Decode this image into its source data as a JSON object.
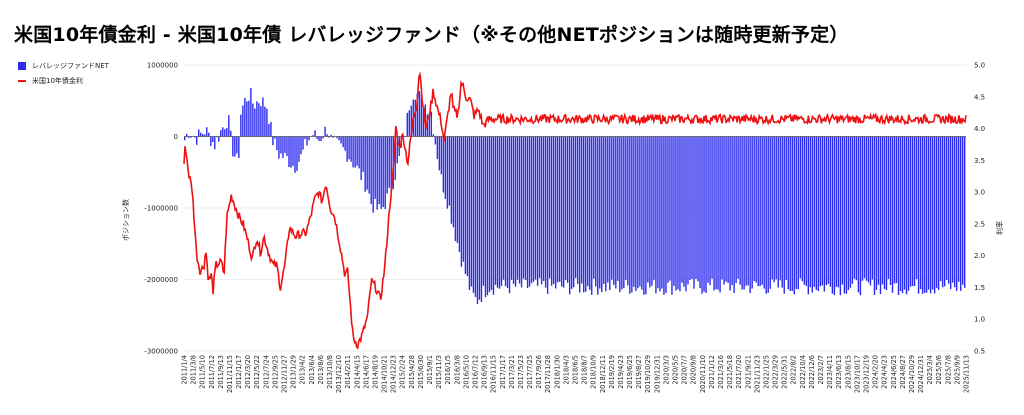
{
  "title": "米国10年債金利 - 米国10年債 レバレッジファンド（※その他NETポジションは随時更新予定）",
  "legend": [
    {
      "label": "レバレッジファンドNET",
      "color": "#2a2aee",
      "kind": "bar"
    },
    {
      "label": "米国10年債金利",
      "color": "#ee1111",
      "kind": "line"
    }
  ],
  "chart_data": {
    "type": "bar",
    "ylabel": "ポジション数",
    "y2label": "利率",
    "ylim": [
      -3000000,
      1000000
    ],
    "y_ticks": [
      "1000000",
      "0",
      "-1000000",
      "-2000000",
      "-3000000"
    ],
    "y2lim": [
      0.5,
      5.0
    ],
    "y2_ticks": [
      "5.0",
      "4.5",
      "4.0",
      "3.5",
      "3.0",
      "2.5",
      "2.0",
      "1.5",
      "1.0",
      "0.5"
    ],
    "x_labels": [
      "2011/1/4",
      "2011/3/8",
      "2011/5/10",
      "2011/7/12",
      "2011/9/13",
      "2011/11/15",
      "2012/1/17",
      "2012/3/20",
      "2012/5/22",
      "2012/7/24",
      "2012/9/25",
      "2012/11/27",
      "2013/1/29",
      "2013/4/2",
      "2013/6/4",
      "2013/8/6",
      "2013/10/8",
      "2013/12/10",
      "2014/2/11",
      "2014/4/15",
      "2014/6/17",
      "2014/8/19",
      "2014/10/21",
      "2014/12/23",
      "2015/2/24",
      "2015/4/28",
      "2015/6/30",
      "2015/9/1",
      "2015/11/3",
      "2016/1/5",
      "2016/3/8",
      "2016/5/10",
      "2016/7/12",
      "2016/9/13",
      "2016/11/15",
      "2017/1/17",
      "2017/3/21",
      "2017/5/23",
      "2017/7/25",
      "2017/9/26",
      "2017/11/28",
      "2018/1/30",
      "2018/4/3",
      "2018/6/5",
      "2018/8/7",
      "2018/10/9",
      "2018/12/11",
      "2019/2/19",
      "2019/4/23",
      "2019/6/25",
      "2019/8/27",
      "2019/10/29",
      "2019/12/31",
      "2020/3/3",
      "2020/5/5",
      "2020/7/7",
      "2020/9/8",
      "2020/11/10",
      "2021/1/12",
      "2021/3/16",
      "2021/5/18",
      "2021/7/20",
      "2021/9/21",
      "2021/11/23",
      "2022/1/25",
      "2022/3/29",
      "2022/5/31",
      "2022/8/2",
      "2022/10/4",
      "2022/12/6",
      "2023/2/7",
      "2023/4/11",
      "2023/6/13",
      "2023/8/15",
      "2023/10/17",
      "2023/12/19",
      "2024/2/20",
      "2024/4/23",
      "2024/6/25",
      "2024/8/27",
      "2024/10/29",
      "2024/12/31",
      "2025/3/4",
      "2025/5/6",
      "2025/7/8",
      "2025/9/9",
      "2025/11/13"
    ],
    "series": [
      {
        "name": "レバレッジファンドNET",
        "kind": "bar",
        "axis": "left",
        "anchors": [
          [
            0,
            -50000
          ],
          [
            0.4,
            80000
          ],
          [
            1.2,
            -30000
          ],
          [
            2.3,
            90000
          ],
          [
            3.3,
            -120000
          ],
          [
            4.1,
            110000
          ],
          [
            4.8,
            260000
          ],
          [
            5.2,
            -150000
          ],
          [
            5.9,
            -400000
          ],
          [
            6.2,
            350000
          ],
          [
            6.7,
            520000
          ],
          [
            7.2,
            600000
          ],
          [
            7.6,
            440000
          ],
          [
            8.3,
            520000
          ],
          [
            9.1,
            420000
          ],
          [
            9.7,
            -50000
          ],
          [
            10.4,
            -250000
          ],
          [
            11.2,
            -300000
          ],
          [
            12.1,
            -420000
          ],
          [
            12.8,
            -300000
          ],
          [
            13.4,
            -100000
          ],
          [
            14.1,
            40000
          ],
          [
            14.8,
            -50000
          ],
          [
            15.7,
            120000
          ],
          [
            16.3,
            -100000
          ],
          [
            17.2,
            -150000
          ],
          [
            18.0,
            -250000
          ],
          [
            19.0,
            -450000
          ],
          [
            20.1,
            -700000
          ],
          [
            20.6,
            -950000
          ],
          [
            21.6,
            -1050000
          ],
          [
            22.6,
            -800000
          ],
          [
            23.6,
            -350000
          ],
          [
            24.3,
            40000
          ],
          [
            24.8,
            480000
          ],
          [
            25.3,
            650000
          ],
          [
            26.2,
            500000
          ],
          [
            27.2,
            350000
          ],
          [
            27.6,
            -50000
          ],
          [
            28.3,
            -600000
          ],
          [
            29.1,
            -950000
          ],
          [
            29.9,
            -1400000
          ],
          [
            30.7,
            -1800000
          ],
          [
            31.6,
            -2200000
          ],
          [
            32.2,
            -2300000
          ],
          [
            32.8,
            -2200000
          ],
          [
            33.5,
            -2100000
          ]
        ],
        "noise": 120000
      },
      {
        "name": "米国10年債金利",
        "kind": "line",
        "axis": "right",
        "anchors": [
          [
            0,
            3.45
          ],
          [
            0.15,
            3.75
          ],
          [
            0.5,
            3.3
          ],
          [
            0.9,
            3.05
          ],
          [
            1.4,
            2.0
          ],
          [
            1.8,
            1.75
          ],
          [
            2.2,
            1.85
          ],
          [
            2.4,
            2.1
          ],
          [
            2.7,
            1.6
          ],
          [
            3.0,
            1.7
          ],
          [
            3.2,
            1.45
          ],
          [
            3.5,
            1.85
          ],
          [
            4.1,
            1.9
          ],
          [
            4.4,
            1.7
          ],
          [
            4.7,
            2.6
          ],
          [
            5.2,
            2.95
          ],
          [
            5.7,
            2.75
          ],
          [
            6.1,
            2.6
          ],
          [
            6.5,
            2.5
          ],
          [
            7.0,
            2.25
          ],
          [
            7.5,
            1.95
          ],
          [
            8.0,
            2.3
          ],
          [
            8.4,
            2.05
          ],
          [
            8.8,
            2.3
          ],
          [
            9.3,
            2.05
          ],
          [
            9.8,
            1.85
          ],
          [
            10.2,
            1.85
          ],
          [
            10.6,
            1.5
          ],
          [
            11.1,
            1.85
          ],
          [
            11.6,
            2.45
          ],
          [
            12.3,
            2.3
          ],
          [
            12.9,
            2.35
          ],
          [
            13.4,
            2.35
          ],
          [
            13.9,
            2.6
          ],
          [
            14.4,
            2.9
          ],
          [
            14.8,
            3.0
          ],
          [
            15.2,
            2.85
          ],
          [
            15.6,
            3.15
          ],
          [
            16.1,
            2.75
          ],
          [
            16.6,
            2.6
          ],
          [
            17.3,
            2.05
          ],
          [
            17.7,
            1.7
          ],
          [
            18.0,
            1.75
          ],
          [
            18.6,
            0.7
          ],
          [
            19.1,
            0.6
          ],
          [
            19.6,
            0.75
          ],
          [
            20.2,
            1.05
          ],
          [
            20.6,
            1.6
          ],
          [
            21.1,
            1.5
          ],
          [
            21.6,
            1.3
          ],
          [
            22.1,
            1.85
          ],
          [
            22.6,
            2.75
          ],
          [
            23.0,
            3.3
          ],
          [
            23.3,
            4.05
          ],
          [
            23.6,
            3.7
          ],
          [
            24.1,
            3.9
          ],
          [
            24.6,
            3.45
          ],
          [
            25.2,
            4.15
          ],
          [
            25.6,
            4.4
          ],
          [
            25.9,
            4.95
          ],
          [
            26.3,
            4.35
          ],
          [
            26.6,
            4.0
          ],
          [
            27.1,
            4.3
          ],
          [
            27.4,
            4.6
          ],
          [
            27.9,
            4.3
          ],
          [
            28.3,
            4.1
          ],
          [
            28.6,
            3.8
          ],
          [
            29.0,
            4.2
          ],
          [
            29.4,
            4.6
          ],
          [
            29.6,
            4.3
          ],
          [
            30.1,
            4.2
          ],
          [
            30.5,
            4.75
          ],
          [
            31.0,
            4.5
          ],
          [
            31.5,
            4.45
          ],
          [
            31.9,
            4.2
          ],
          [
            32.4,
            4.3
          ],
          [
            32.9,
            4.05
          ],
          [
            33.3,
            4.1
          ],
          [
            33.5,
            4.15
          ]
        ],
        "noise": 0.07
      }
    ]
  }
}
